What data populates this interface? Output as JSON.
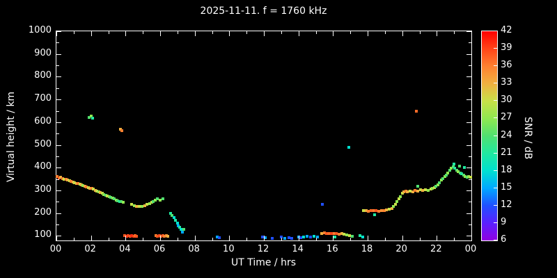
{
  "chart_data": {
    "type": "scatter",
    "title": "2025-11-11. f = 1760 kHz",
    "xlabel": "UT Time / hrs",
    "ylabel": "Virtual height / km",
    "xlim": [
      0,
      24
    ],
    "ylim": [
      80,
      1000
    ],
    "grid": false,
    "background": "#000000",
    "axis_color": "#ffffff",
    "x_major_ticks": [
      0,
      2,
      4,
      6,
      8,
      10,
      12,
      14,
      16,
      18,
      20,
      22,
      24
    ],
    "x_tick_labels": [
      "00",
      "02",
      "04",
      "06",
      "08",
      "10",
      "12",
      "14",
      "16",
      "18",
      "20",
      "22",
      "00"
    ],
    "x_minor_ticks": [
      1,
      3,
      5,
      7,
      9,
      11,
      13,
      15,
      17,
      19,
      21,
      23
    ],
    "y_major_ticks": [
      100,
      200,
      300,
      400,
      500,
      600,
      700,
      800,
      900,
      1000
    ],
    "y_minor_ticks": [
      150,
      250,
      350,
      450,
      550,
      650,
      750,
      850,
      950
    ],
    "colorbar": {
      "label": "SNR / dB",
      "min": 6,
      "max": 42,
      "ticks": [
        42,
        39,
        36,
        33,
        30,
        27,
        24,
        21,
        18,
        15,
        12,
        9,
        6
      ],
      "stops": [
        {
          "v": 6,
          "c": "#9000e0"
        },
        {
          "v": 9,
          "c": "#5a20ff"
        },
        {
          "v": 12,
          "c": "#2050ff"
        },
        {
          "v": 15,
          "c": "#00a8ff"
        },
        {
          "v": 18,
          "c": "#00e0d0"
        },
        {
          "v": 21,
          "c": "#20e8a0"
        },
        {
          "v": 24,
          "c": "#50e070"
        },
        {
          "v": 27,
          "c": "#90e850"
        },
        {
          "v": 30,
          "c": "#c8e048"
        },
        {
          "v": 33,
          "c": "#f0b040"
        },
        {
          "v": 36,
          "c": "#ff8030"
        },
        {
          "v": 39,
          "c": "#ff4418"
        },
        {
          "v": 42,
          "c": "#ff0000"
        }
      ]
    },
    "points": [
      [
        0.05,
        360,
        36
      ],
      [
        0.15,
        356,
        38
      ],
      [
        0.25,
        358,
        33
      ],
      [
        0.35,
        352,
        36
      ],
      [
        0.45,
        350,
        30
      ],
      [
        0.55,
        348,
        36
      ],
      [
        0.65,
        345,
        33
      ],
      [
        0.75,
        342,
        30
      ],
      [
        0.85,
        340,
        36
      ],
      [
        0.95,
        338,
        33
      ],
      [
        1.05,
        335,
        30
      ],
      [
        1.15,
        332,
        33
      ],
      [
        1.25,
        330,
        36
      ],
      [
        1.35,
        328,
        30
      ],
      [
        1.45,
        325,
        33
      ],
      [
        1.55,
        322,
        27
      ],
      [
        1.65,
        318,
        33
      ],
      [
        1.75,
        315,
        36
      ],
      [
        1.85,
        312,
        30
      ],
      [
        1.95,
        310,
        33
      ],
      [
        2.05,
        308,
        36
      ],
      [
        2.15,
        305,
        30
      ],
      [
        2.25,
        300,
        33
      ],
      [
        2.35,
        297,
        30
      ],
      [
        2.45,
        293,
        27
      ],
      [
        2.55,
        290,
        33
      ],
      [
        2.65,
        287,
        30
      ],
      [
        2.75,
        283,
        27
      ],
      [
        2.85,
        280,
        24
      ],
      [
        2.95,
        277,
        30
      ],
      [
        3.05,
        272,
        27
      ],
      [
        3.15,
        268,
        24
      ],
      [
        3.25,
        265,
        27
      ],
      [
        3.35,
        262,
        24
      ],
      [
        3.45,
        258,
        27
      ],
      [
        3.55,
        255,
        24
      ],
      [
        3.65,
        252,
        21
      ],
      [
        3.75,
        250,
        24
      ],
      [
        3.85,
        248,
        27
      ],
      [
        1.9,
        620,
        24
      ],
      [
        2.0,
        628,
        27
      ],
      [
        2.1,
        618,
        21
      ],
      [
        3.7,
        570,
        33
      ],
      [
        3.78,
        562,
        36
      ],
      [
        3.95,
        100,
        38
      ],
      [
        4.05,
        98,
        40
      ],
      [
        4.15,
        100,
        39
      ],
      [
        4.25,
        98,
        38
      ],
      [
        4.35,
        100,
        40
      ],
      [
        4.45,
        98,
        39
      ],
      [
        4.55,
        100,
        37
      ],
      [
        4.65,
        98,
        38
      ],
      [
        4.35,
        238,
        30
      ],
      [
        4.5,
        232,
        27
      ],
      [
        4.65,
        230,
        33
      ],
      [
        4.8,
        229,
        30
      ],
      [
        4.95,
        231,
        27
      ],
      [
        5.1,
        234,
        33
      ],
      [
        5.25,
        238,
        30
      ],
      [
        5.4,
        242,
        27
      ],
      [
        5.5,
        248,
        30
      ],
      [
        5.6,
        252,
        24
      ],
      [
        5.72,
        258,
        27
      ],
      [
        5.85,
        262,
        24
      ],
      [
        6.0,
        256,
        27
      ],
      [
        6.15,
        262,
        24
      ],
      [
        5.75,
        100,
        36
      ],
      [
        5.85,
        98,
        38
      ],
      [
        5.95,
        100,
        39
      ],
      [
        6.05,
        98,
        37
      ],
      [
        6.15,
        100,
        38
      ],
      [
        6.25,
        98,
        36
      ],
      [
        6.35,
        100,
        35
      ],
      [
        6.45,
        98,
        33
      ],
      [
        6.6,
        200,
        21
      ],
      [
        6.7,
        190,
        24
      ],
      [
        6.8,
        180,
        18
      ],
      [
        6.9,
        168,
        21
      ],
      [
        7.0,
        155,
        18
      ],
      [
        7.05,
        145,
        15
      ],
      [
        7.12,
        138,
        21
      ],
      [
        7.2,
        128,
        18
      ],
      [
        7.3,
        118,
        15
      ],
      [
        7.35,
        130,
        24
      ],
      [
        9.3,
        95,
        15
      ],
      [
        9.42,
        92,
        12
      ],
      [
        11.9,
        95,
        12
      ],
      [
        12.1,
        92,
        15
      ],
      [
        12.5,
        90,
        12
      ],
      [
        13.0,
        95,
        12
      ],
      [
        13.2,
        90,
        15
      ],
      [
        13.45,
        93,
        12
      ],
      [
        13.6,
        90,
        12
      ],
      [
        14.0,
        95,
        15
      ],
      [
        14.15,
        92,
        12
      ],
      [
        14.3,
        95,
        18
      ],
      [
        14.5,
        98,
        15
      ],
      [
        14.7,
        95,
        12
      ],
      [
        14.9,
        98,
        18
      ],
      [
        15.1,
        95,
        15
      ],
      [
        15.4,
        240,
        12
      ],
      [
        15.35,
        112,
        33
      ],
      [
        15.5,
        114,
        36
      ],
      [
        15.62,
        110,
        38
      ],
      [
        15.75,
        112,
        37
      ],
      [
        15.9,
        110,
        39
      ],
      [
        16.05,
        112,
        36
      ],
      [
        16.2,
        110,
        38
      ],
      [
        16.35,
        108,
        36
      ],
      [
        16.5,
        110,
        33
      ],
      [
        16.65,
        106,
        30
      ],
      [
        16.8,
        104,
        27
      ],
      [
        16.95,
        100,
        30
      ],
      [
        17.1,
        98,
        24
      ],
      [
        16.1,
        95,
        21
      ],
      [
        16.9,
        490,
        18
      ],
      [
        17.55,
        100,
        21
      ],
      [
        17.7,
        96,
        18
      ],
      [
        17.75,
        212,
        30
      ],
      [
        17.9,
        210,
        33
      ],
      [
        18.05,
        208,
        36
      ],
      [
        18.2,
        210,
        37
      ],
      [
        18.35,
        212,
        36
      ],
      [
        18.4,
        193,
        21
      ],
      [
        18.5,
        210,
        38
      ],
      [
        18.65,
        208,
        36
      ],
      [
        18.8,
        210,
        35
      ],
      [
        18.95,
        212,
        36
      ],
      [
        19.1,
        214,
        33
      ],
      [
        19.25,
        217,
        30
      ],
      [
        19.4,
        222,
        33
      ],
      [
        19.5,
        230,
        27
      ],
      [
        19.6,
        240,
        30
      ],
      [
        19.7,
        252,
        27
      ],
      [
        19.8,
        262,
        30
      ],
      [
        19.9,
        272,
        27
      ],
      [
        20.0,
        288,
        30
      ],
      [
        20.1,
        293,
        33
      ],
      [
        20.2,
        298,
        36
      ],
      [
        20.3,
        294,
        33
      ],
      [
        20.45,
        298,
        30
      ],
      [
        20.6,
        295,
        33
      ],
      [
        20.75,
        300,
        36
      ],
      [
        20.8,
        650,
        37
      ],
      [
        20.9,
        297,
        33
      ],
      [
        20.9,
        318,
        24
      ],
      [
        21.05,
        302,
        30
      ],
      [
        21.2,
        299,
        33
      ],
      [
        21.35,
        303,
        30
      ],
      [
        21.5,
        300,
        27
      ],
      [
        21.65,
        305,
        30
      ],
      [
        21.75,
        308,
        27
      ],
      [
        21.85,
        312,
        30
      ],
      [
        21.95,
        318,
        24
      ],
      [
        22.05,
        325,
        27
      ],
      [
        22.15,
        335,
        24
      ],
      [
        22.25,
        345,
        27
      ],
      [
        22.35,
        352,
        24
      ],
      [
        22.45,
        360,
        27
      ],
      [
        22.55,
        368,
        24
      ],
      [
        22.65,
        378,
        27
      ],
      [
        22.75,
        388,
        24
      ],
      [
        22.85,
        398,
        27
      ],
      [
        22.95,
        405,
        24
      ],
      [
        23.0,
        415,
        21
      ],
      [
        23.05,
        398,
        21
      ],
      [
        23.15,
        390,
        24
      ],
      [
        23.25,
        383,
        27
      ],
      [
        23.3,
        408,
        24
      ],
      [
        23.35,
        377,
        24
      ],
      [
        23.45,
        372,
        21
      ],
      [
        23.55,
        367,
        24
      ],
      [
        23.6,
        400,
        21
      ],
      [
        23.65,
        362,
        27
      ],
      [
        23.75,
        358,
        24
      ],
      [
        23.85,
        362,
        27
      ],
      [
        23.95,
        357,
        30
      ]
    ]
  }
}
